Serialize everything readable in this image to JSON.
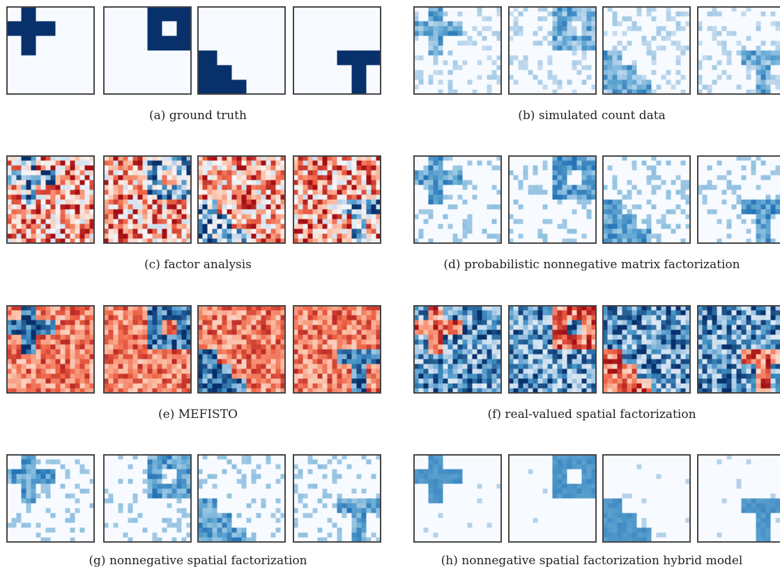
{
  "captions": {
    "a": "(a) ground truth",
    "b": "(b) simulated count data",
    "c": "(c) factor analysis",
    "d": "(d) probabilistic nonnegative matrix factorization",
    "e": "(e) MEFISTO",
    "f": "(f) real-valued spatial factorization",
    "g": "(g) nonnegative spatial factorization",
    "h": "(h) nonnegative spatial factorization hybrid model"
  },
  "colors": {
    "blue_dark": "#08306b",
    "blue_light": "#f7fbff",
    "red_dark": "#a50f15",
    "border": "#444444"
  },
  "factors": [
    "cross",
    "square-ring",
    "staircase",
    "t-shape"
  ],
  "figure": {
    "a": {
      "style": "truth"
    },
    "b": {
      "style": "counts"
    },
    "c": {
      "style": "diverging-noisy"
    },
    "d": {
      "style": "blues-sparse"
    },
    "e": {
      "style": "diverging"
    },
    "f": {
      "style": "diverging-inverted"
    },
    "g": {
      "style": "blues-sparse"
    },
    "h": {
      "style": "blues-clean"
    }
  }
}
